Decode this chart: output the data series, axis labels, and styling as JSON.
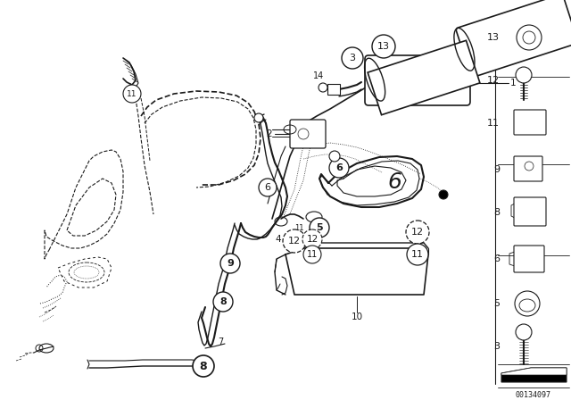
{
  "bg_color": "#ffffff",
  "line_color": "#1a1a1a",
  "fig_width": 6.4,
  "fig_height": 4.48,
  "dpi": 100,
  "watermark": "00134097",
  "legend_items": [
    13,
    12,
    11,
    9,
    8,
    6,
    5,
    3
  ]
}
